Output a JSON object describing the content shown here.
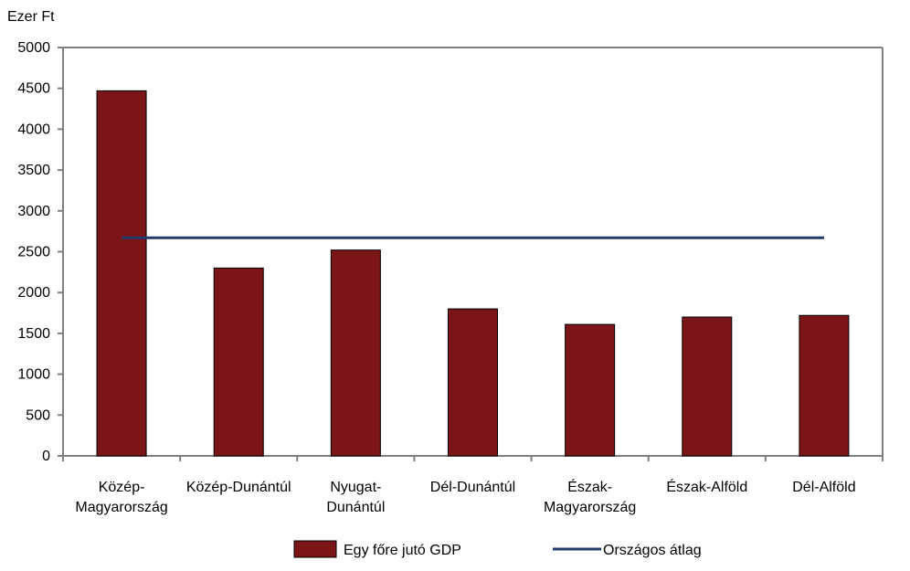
{
  "chart_data": {
    "type": "bar",
    "ylabel": "Ezer Ft",
    "ylim": [
      0,
      5000
    ],
    "yticks": [
      0,
      500,
      1000,
      1500,
      2000,
      2500,
      3000,
      3500,
      4000,
      4500,
      5000
    ],
    "grid": false,
    "categories": [
      [
        "Közép-",
        "Magyarország"
      ],
      [
        "Közép-Dunántúl"
      ],
      [
        "Nyugat-",
        "Dunántúl"
      ],
      [
        "Dél-Dunántúl"
      ],
      [
        "Észak-",
        "Magyarország"
      ],
      [
        "Észak-Alföld"
      ],
      [
        "Dél-Alföld"
      ]
    ],
    "series": [
      {
        "name": "Egy főre jutó GDP",
        "type": "bar",
        "color": "#7b1518",
        "values": [
          4470,
          2300,
          2520,
          1800,
          1610,
          1700,
          1720
        ]
      },
      {
        "name": "Országos átlag",
        "type": "line",
        "color": "#243a6a",
        "values": [
          2670,
          2670,
          2670,
          2670,
          2670,
          2670,
          2670
        ]
      }
    ],
    "legend_position": "bottom"
  }
}
